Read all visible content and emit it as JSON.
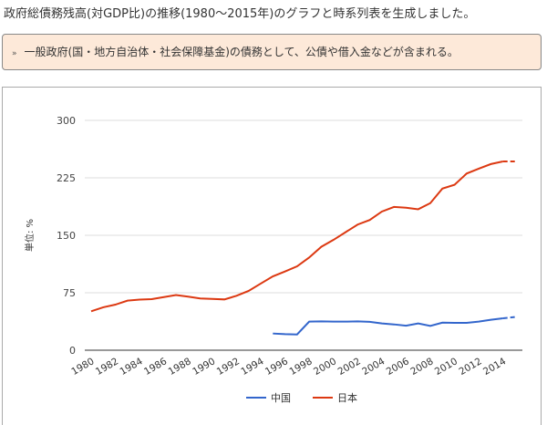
{
  "title": "政府総債務残高(対GDP比)の推移(1980～2015年)のグラフと時系列表を生成しました。",
  "note": {
    "bullet": "»",
    "text": "一般政府(国・地方自治体・社会保障基金)の債務として、公債や借入金などが含まれる。"
  },
  "chart_data": {
    "type": "line",
    "title": "",
    "xlabel": "",
    "ylabel": "単位: %",
    "ylim": [
      0,
      300
    ],
    "yticks": [
      0,
      75,
      150,
      225,
      300
    ],
    "xlim": [
      1980,
      2015
    ],
    "xticks": [
      "1980",
      "1982",
      "1984",
      "1986",
      "1988",
      "1990",
      "1992",
      "1994",
      "1996",
      "1998",
      "2000",
      "2002",
      "2004",
      "2006",
      "2008",
      "2010",
      "2012",
      "2014"
    ],
    "grid": true,
    "legend_position": "bottom",
    "dashed_from": 2014,
    "series": [
      {
        "name": "中国",
        "color": "#3366cc",
        "x": [
          1995,
          1996,
          1997,
          1998,
          1999,
          2000,
          2001,
          2002,
          2003,
          2004,
          2005,
          2006,
          2007,
          2008,
          2009,
          2010,
          2011,
          2012,
          2013,
          2014,
          2015
        ],
        "values": [
          21.8,
          21,
          20.6,
          37.3,
          37.7,
          37.3,
          37.3,
          37.7,
          37,
          35,
          33.7,
          32,
          35,
          31.7,
          36,
          35.7,
          35.7,
          37.3,
          39.7,
          41.7,
          43.3
        ]
      },
      {
        "name": "日本",
        "color": "#dc3912",
        "x": [
          1980,
          1981,
          1982,
          1983,
          1984,
          1985,
          1986,
          1987,
          1988,
          1989,
          1990,
          1991,
          1992,
          1993,
          1994,
          1995,
          1996,
          1997,
          1998,
          1999,
          2000,
          2001,
          2002,
          2003,
          2004,
          2005,
          2006,
          2007,
          2008,
          2009,
          2010,
          2011,
          2012,
          2013,
          2014,
          2015
        ],
        "values": [
          50.8,
          56,
          59.5,
          64.7,
          66,
          66.7,
          69.4,
          72,
          70,
          67.5,
          67,
          66.3,
          71,
          77.4,
          87,
          96.4,
          102.8,
          109.5,
          121,
          135,
          144,
          154,
          164,
          170,
          181,
          187,
          186,
          184,
          192,
          211,
          216,
          230.6,
          237,
          243,
          246.4,
          246.4
        ]
      }
    ]
  }
}
